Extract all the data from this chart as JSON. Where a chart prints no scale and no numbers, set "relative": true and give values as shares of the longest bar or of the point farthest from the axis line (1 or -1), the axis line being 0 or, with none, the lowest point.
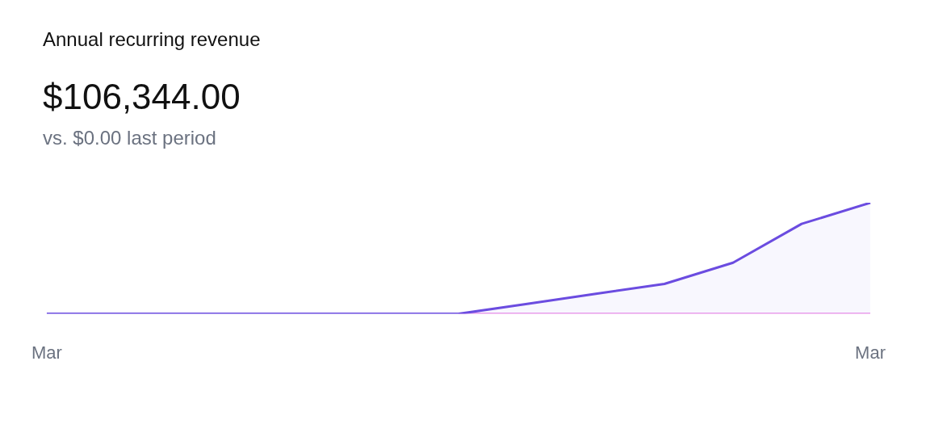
{
  "chart_data": {
    "type": "area",
    "title": "Annual recurring revenue",
    "subtitle": "$106,344.00",
    "annotations": [
      "vs. $0.00 last period"
    ],
    "relative": true,
    "grid": false,
    "legend": false,
    "marker": "none",
    "categories": [
      "Mar",
      null,
      null,
      null,
      null,
      null,
      null,
      null,
      null,
      null,
      null,
      null,
      "Mar"
    ],
    "series": [
      {
        "color": "#6b4ce0",
        "values": [
          0,
          0,
          0,
          0,
          0,
          0,
          0,
          0.09,
          0.18,
          0.27,
          0.46,
          0.81,
          1
        ]
      },
      {
        "type": "line",
        "color": "#eea0ec",
        "values": [
          null,
          null,
          null,
          null,
          null,
          null,
          0,
          0,
          0,
          0,
          0,
          0,
          0
        ]
      }
    ]
  }
}
